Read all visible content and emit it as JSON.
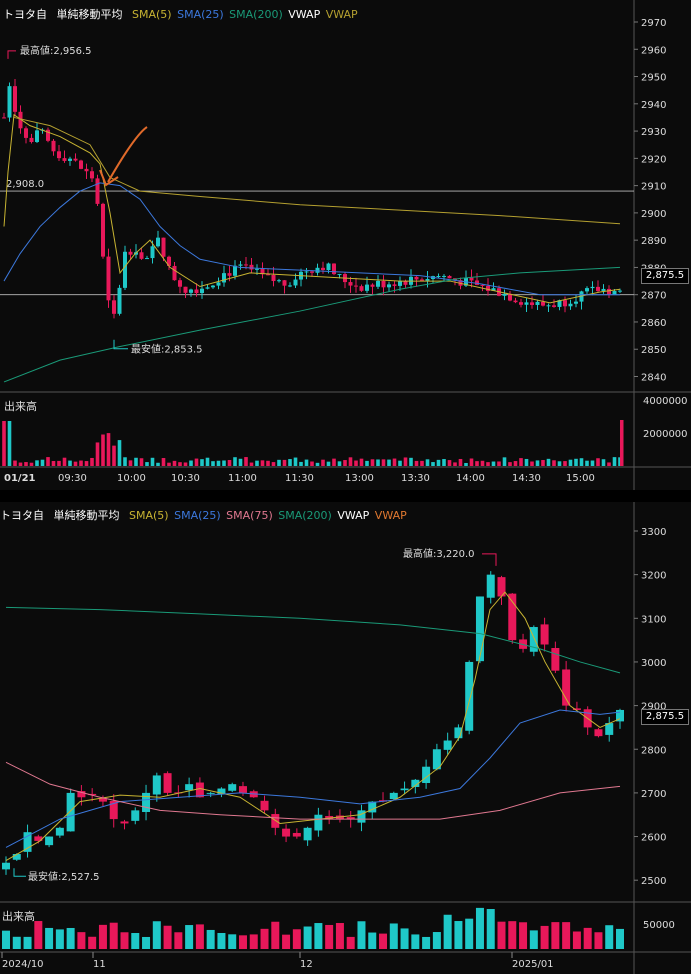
{
  "top": {
    "legend": {
      "symbol": "トヨタ自",
      "indicator": "単純移動平均",
      "sma5": "SMA(5)",
      "sma25": "SMA(25)",
      "sma200": "SMA(200)",
      "vwap1": "VWAP",
      "vwap2": "VWAP"
    },
    "high_label": "最高値:2,956.5",
    "low_label": "最安値:2,853.5",
    "left_price_label": "2,908.0",
    "current_price": "2,875.5",
    "price_ticks": [
      "2970",
      "2960",
      "2950",
      "2940",
      "2930",
      "2920",
      "2910",
      "2900",
      "2890",
      "2880",
      "2870",
      "2860",
      "2850",
      "2840"
    ],
    "volume_label": "出来高",
    "volume_ticks": [
      "4000000",
      "2000000"
    ],
    "time_ticks": [
      "01/21",
      "09:30",
      "10:00",
      "10:30",
      "11:00",
      "11:30",
      "13:00",
      "13:30",
      "14:00",
      "14:30",
      "15:00"
    ]
  },
  "bottom": {
    "legend": {
      "symbol": "トヨタ自",
      "indicator": "単純移動平均",
      "sma5": "SMA(5)",
      "sma25": "SMA(25)",
      "sma75": "SMA(75)",
      "sma200": "SMA(200)",
      "vwap1": "VWAP",
      "vwap2": "VWAP"
    },
    "high_label": "最高値:3,220.0",
    "low_label": "最安値:2,527.5",
    "current_price": "2,875.5",
    "price_ticks": [
      "3300",
      "3200",
      "3100",
      "3000",
      "2900",
      "2800",
      "2700",
      "2600",
      "2500"
    ],
    "volume_label": "出来高",
    "volume_ticks": [
      "50000"
    ],
    "date_ticks": [
      "2024/10",
      "11",
      "12",
      "2025/01"
    ]
  },
  "colors": {
    "up": "#1fc8c8",
    "down": "#e8185a",
    "sma5": "#c8b432",
    "sma25": "#3c78dc",
    "sma75": "#e07890",
    "sma200": "#1a9a78",
    "vwap_white": "#ffffff",
    "vwap_orange": "#e07830",
    "arrow": "#e06a2a"
  }
}
